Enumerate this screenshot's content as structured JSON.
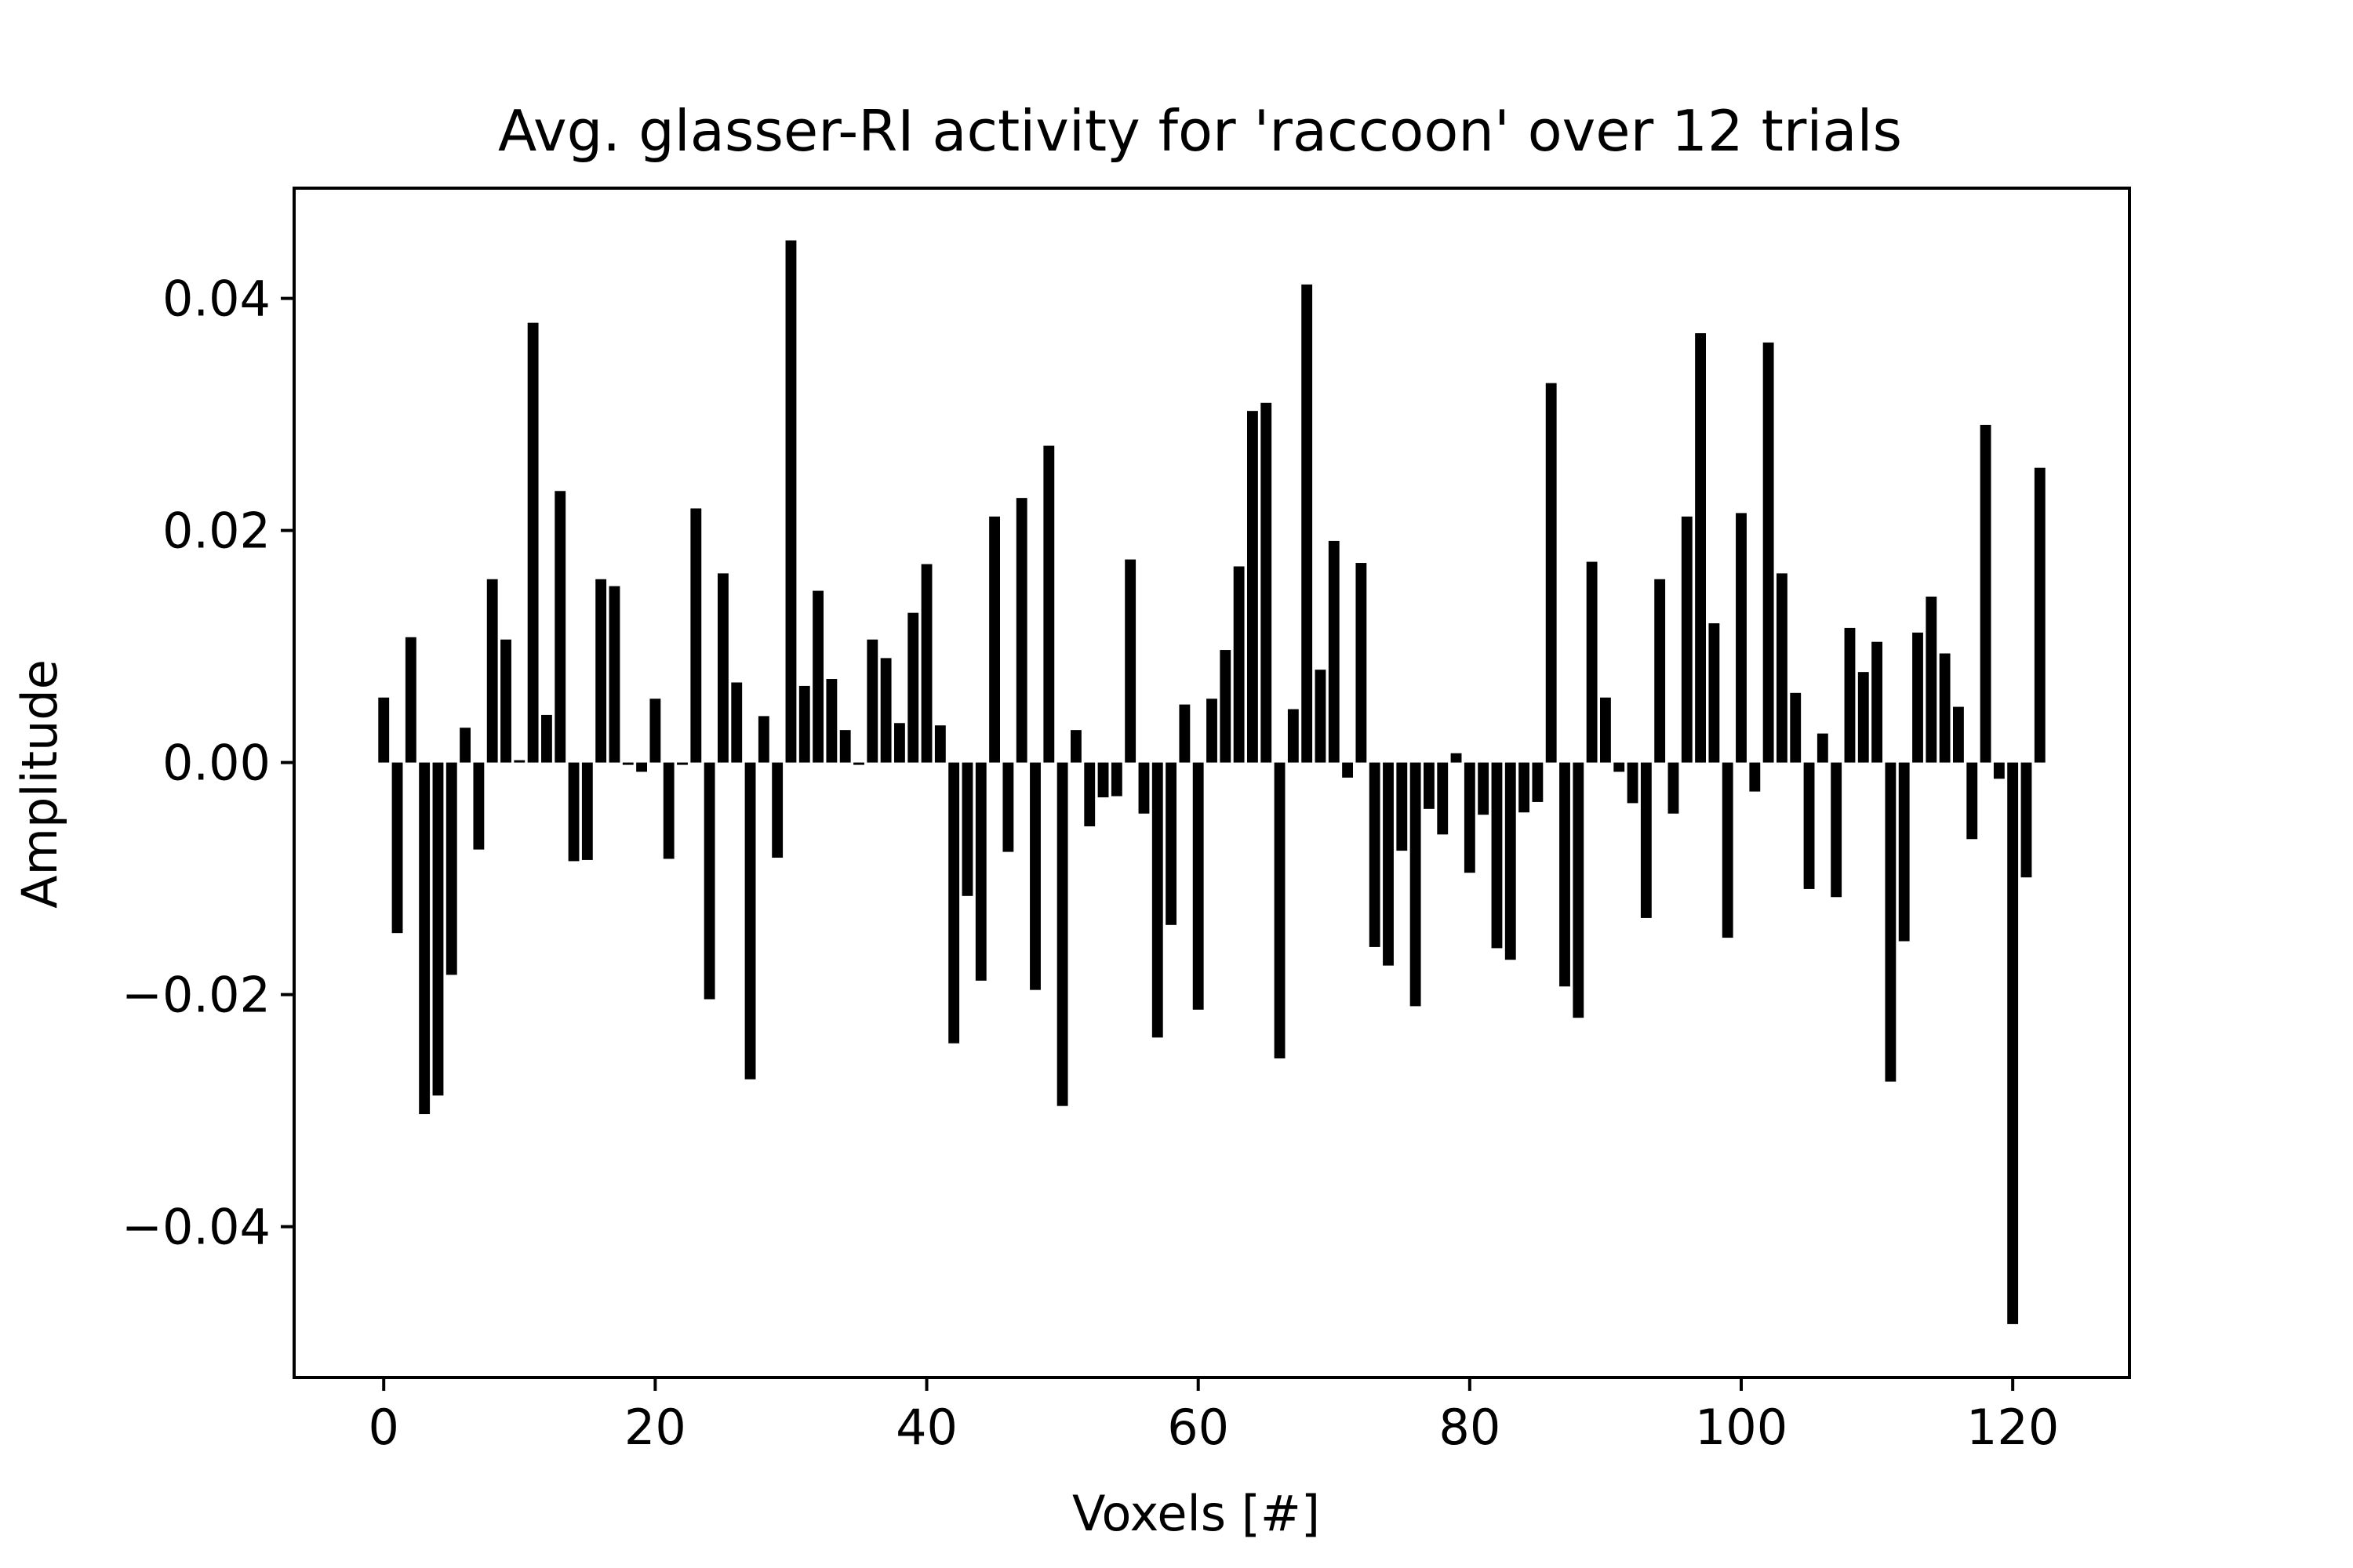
{
  "chart_data": {
    "type": "bar",
    "title": "Avg. glasser-RI activity for 'raccoon' over 12 trials",
    "xlabel": "Voxels [#]",
    "ylabel": "Amplitude",
    "xlim": [
      -6.6,
      128.6
    ],
    "ylim": [
      -0.053,
      0.0495
    ],
    "xticks": [
      0,
      20,
      40,
      60,
      80,
      100,
      120
    ],
    "yticks": [
      -0.04,
      -0.02,
      0.0,
      0.02,
      0.04
    ],
    "xtick_labels": [
      "0",
      "20",
      "40",
      "60",
      "80",
      "100",
      "120"
    ],
    "ytick_labels": [
      "−0.04",
      "−0.02",
      "0.00",
      "0.02",
      "0.04"
    ],
    "bar_color": "#000000",
    "grid": false,
    "legend": "none",
    "x": [
      0,
      1,
      2,
      3,
      4,
      5,
      6,
      7,
      8,
      9,
      10,
      11,
      12,
      13,
      14,
      15,
      16,
      17,
      18,
      19,
      20,
      21,
      22,
      23,
      24,
      25,
      26,
      27,
      28,
      29,
      30,
      31,
      32,
      33,
      34,
      35,
      36,
      37,
      38,
      39,
      40,
      41,
      42,
      43,
      44,
      45,
      46,
      47,
      48,
      49,
      50,
      51,
      52,
      53,
      54,
      55,
      56,
      57,
      58,
      59,
      60,
      61,
      62,
      63,
      64,
      65,
      66,
      67,
      68,
      69,
      70,
      71,
      72,
      73,
      74,
      75,
      76,
      77,
      78,
      79,
      80,
      81,
      82,
      83,
      84,
      85,
      86,
      87,
      88,
      89,
      90,
      91,
      92,
      93,
      94,
      95,
      96,
      97,
      98,
      99,
      100,
      101,
      102,
      103,
      104,
      105,
      106,
      107,
      108,
      109,
      110,
      111,
      112,
      113,
      114,
      115,
      116,
      117,
      118,
      119,
      120,
      121,
      122
    ],
    "values": [
      0.0056,
      -0.0147,
      0.0108,
      -0.0303,
      -0.0287,
      -0.0183,
      0.003,
      -0.0075,
      0.0158,
      0.0106,
      0.0002,
      0.0379,
      0.0041,
      0.0234,
      -0.0085,
      -0.0084,
      0.0158,
      0.0152,
      -0.0002,
      -0.0008,
      0.0055,
      -0.0083,
      -0.0002,
      0.0219,
      -0.0204,
      0.0163,
      0.0069,
      -0.0273,
      0.004,
      -0.0082,
      0.045,
      0.0066,
      0.0148,
      0.0072,
      0.0028,
      -0.0002,
      0.0106,
      0.009,
      0.0034,
      0.0129,
      0.0171,
      0.0032,
      -0.0242,
      -0.0115,
      -0.0188,
      0.0212,
      -0.0077,
      0.0228,
      -0.0196,
      0.0273,
      -0.0296,
      0.0028,
      -0.0055,
      -0.003,
      -0.0029,
      0.0175,
      -0.0044,
      -0.0237,
      -0.014,
      0.005,
      -0.0213,
      0.0055,
      0.0097,
      0.0169,
      0.0303,
      0.031,
      -0.0255,
      0.0046,
      0.0412,
      0.008,
      0.0191,
      -0.0013,
      0.0172,
      -0.0159,
      -0.0175,
      -0.0076,
      -0.021,
      -0.004,
      -0.0062,
      0.0008,
      -0.0095,
      -0.0045,
      -0.016,
      -0.017,
      -0.0043,
      -0.0034,
      0.0327,
      -0.0193,
      -0.022,
      0.0173,
      0.0056,
      -0.0008,
      -0.0035,
      -0.0134,
      0.0158,
      -0.0044,
      0.0212,
      0.037,
      0.012,
      -0.0151,
      0.0215,
      -0.0025,
      0.0362,
      0.0163,
      0.006,
      -0.0109,
      0.0025,
      -0.0116,
      0.0116,
      0.0078,
      0.0104,
      -0.0275,
      -0.0154,
      0.0112,
      0.0143,
      0.0094,
      0.0048,
      -0.0066,
      0.0291,
      -0.0014,
      -0.0484,
      -0.0099,
      0.0254
    ]
  }
}
